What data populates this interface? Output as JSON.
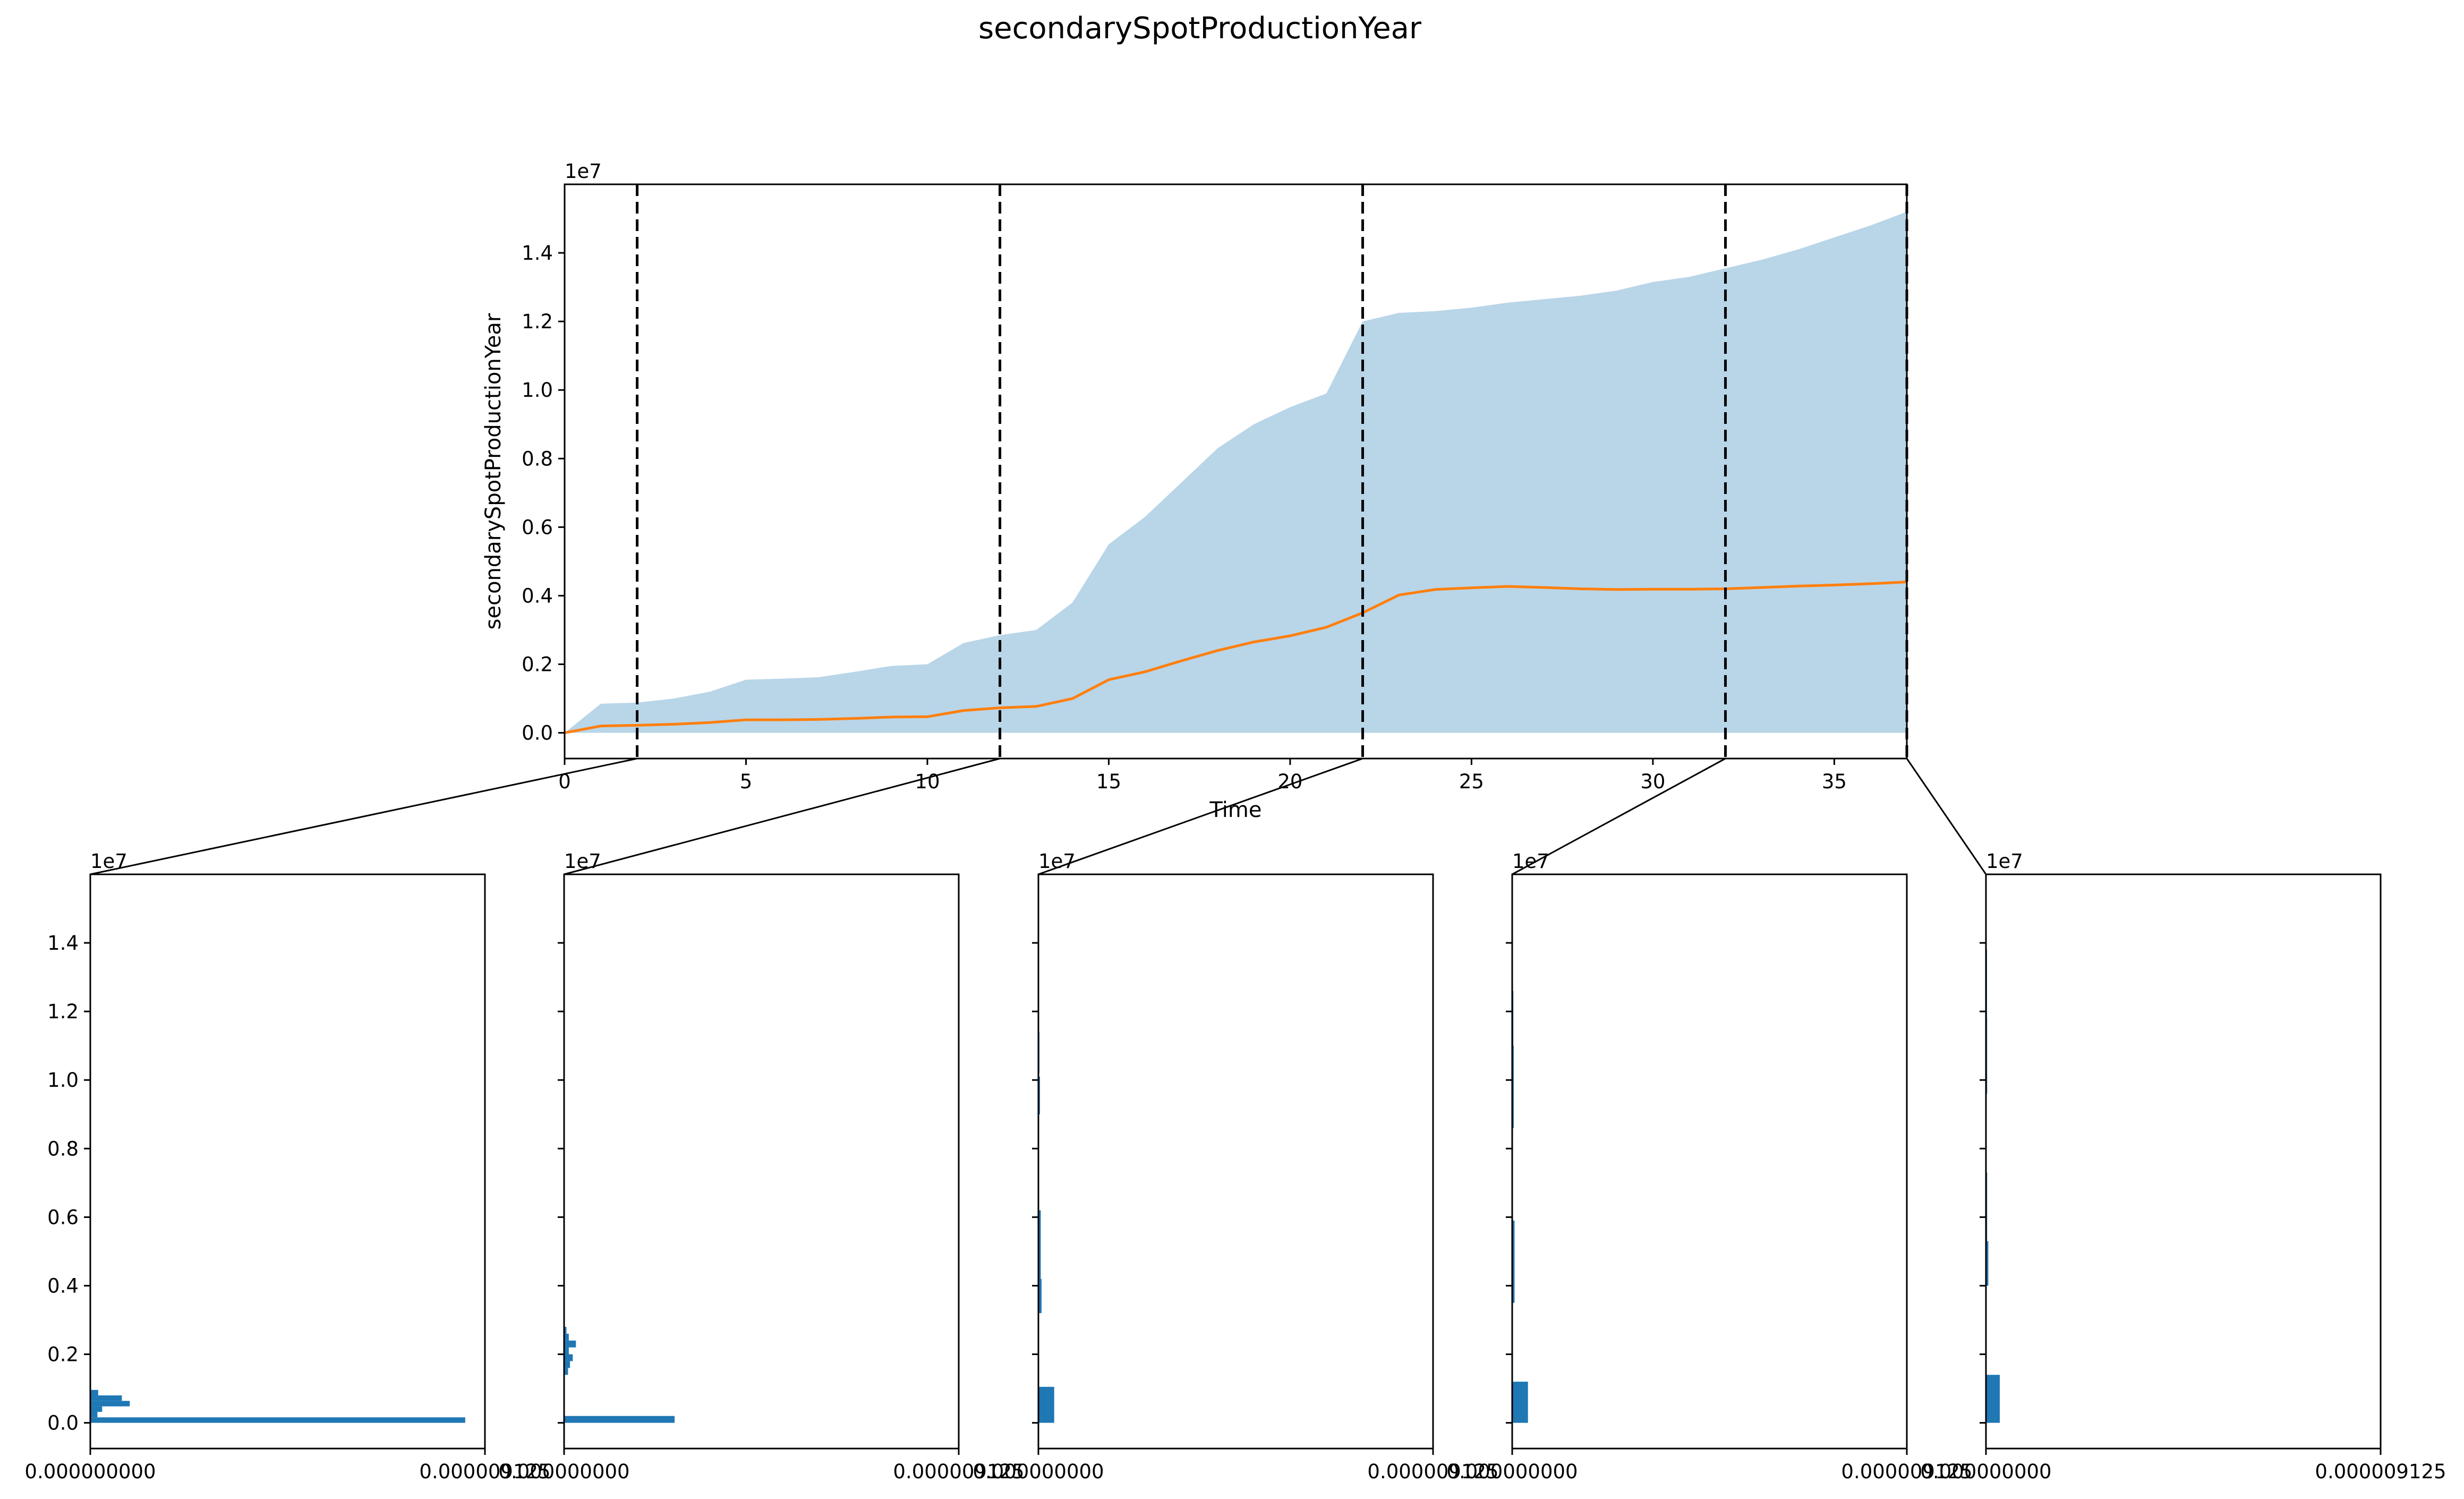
{
  "colors": {
    "band": "#b9d5e8",
    "line": "#ff7f0e",
    "hist": "#1f77b4",
    "axis": "#000000"
  },
  "chart_data": [
    {
      "type": "area",
      "title": "secondarySpotProductionYear",
      "xlabel": "Time",
      "ylabel": "secondarySpotProductionYear",
      "offset_text": "1e7",
      "xlim": [
        0,
        37
      ],
      "ylim": [
        -0.075,
        1.6
      ],
      "x_ticks": [
        "0",
        "5",
        "10",
        "15",
        "20",
        "25",
        "30",
        "35"
      ],
      "y_ticks": [
        "0.0",
        "0.2",
        "0.4",
        "0.6",
        "0.8",
        "1.0",
        "1.2",
        "1.4"
      ],
      "x": [
        0,
        1,
        2,
        3,
        4,
        5,
        6,
        7,
        8,
        9,
        10,
        11,
        12,
        13,
        14,
        15,
        16,
        17,
        18,
        19,
        20,
        21,
        22,
        23,
        24,
        25,
        26,
        27,
        28,
        29,
        30,
        31,
        32,
        33,
        34,
        35,
        36,
        37
      ],
      "band_upper": [
        0.0,
        0.085,
        0.088,
        0.1,
        0.12,
        0.155,
        0.158,
        0.162,
        0.178,
        0.195,
        0.2,
        0.262,
        0.285,
        0.3,
        0.38,
        0.55,
        0.63,
        0.73,
        0.83,
        0.9,
        0.95,
        0.99,
        1.2,
        1.225,
        1.23,
        1.24,
        1.255,
        1.265,
        1.275,
        1.29,
        1.315,
        1.33,
        1.355,
        1.38,
        1.41,
        1.445,
        1.48,
        1.52
      ],
      "band_lower": [
        0,
        0,
        0,
        0,
        0,
        0,
        0,
        0,
        0,
        0,
        0,
        0,
        0,
        0,
        0,
        0,
        0,
        0,
        0,
        0,
        0,
        0,
        0,
        0,
        0,
        0,
        0,
        0,
        0,
        0,
        0,
        0,
        0,
        0,
        0,
        0,
        0,
        0
      ],
      "mean": [
        0.0,
        0.02,
        0.022,
        0.025,
        0.03,
        0.038,
        0.038,
        0.039,
        0.042,
        0.046,
        0.047,
        0.065,
        0.073,
        0.077,
        0.1,
        0.155,
        0.178,
        0.21,
        0.24,
        0.265,
        0.283,
        0.308,
        0.35,
        0.402,
        0.418,
        0.423,
        0.427,
        0.424,
        0.42,
        0.418,
        0.419,
        0.419,
        0.42,
        0.424,
        0.428,
        0.431,
        0.435,
        0.44
      ],
      "vlines": [
        2,
        12,
        22,
        32,
        37
      ]
    },
    {
      "type": "bar",
      "orientation": "horizontal",
      "offset_text": "1e7",
      "ylim": [
        -0.075,
        1.6
      ],
      "y_ticks": [
        "0.0",
        "0.2",
        "0.4",
        "0.6",
        "0.8",
        "1.0",
        "1.2",
        "1.4"
      ],
      "xtick_labels": [
        "0.000000000",
        "0.000009125"
      ],
      "panels": [
        {
          "time": 2,
          "bars": [
            {
              "y": 0.0,
              "h": 0.016,
              "w": 0.95
            },
            {
              "y": 0.016,
              "h": 0.016,
              "w": 0.018
            },
            {
              "y": 0.032,
              "h": 0.016,
              "w": 0.03
            },
            {
              "y": 0.048,
              "h": 0.016,
              "w": 0.1
            },
            {
              "y": 0.064,
              "h": 0.016,
              "w": 0.08
            },
            {
              "y": 0.08,
              "h": 0.016,
              "w": 0.02
            }
          ]
        },
        {
          "time": 12,
          "bars": [
            {
              "y": 0.0,
              "h": 0.02,
              "w": 0.28
            },
            {
              "y": 0.14,
              "h": 0.02,
              "w": 0.01
            },
            {
              "y": 0.16,
              "h": 0.02,
              "w": 0.015
            },
            {
              "y": 0.18,
              "h": 0.02,
              "w": 0.022
            },
            {
              "y": 0.2,
              "h": 0.02,
              "w": 0.012
            },
            {
              "y": 0.22,
              "h": 0.02,
              "w": 0.03
            },
            {
              "y": 0.24,
              "h": 0.02,
              "w": 0.012
            },
            {
              "y": 0.26,
              "h": 0.02,
              "w": 0.006
            }
          ]
        },
        {
          "time": 22,
          "bars": [
            {
              "y": 0.0,
              "h": 0.105,
              "w": 0.04
            },
            {
              "y": 0.32,
              "h": 0.1,
              "w": 0.008
            },
            {
              "y": 0.42,
              "h": 0.2,
              "w": 0.006
            },
            {
              "y": 0.9,
              "h": 0.11,
              "w": 0.004
            },
            {
              "y": 1.02,
              "h": 0.12,
              "w": 0.002
            }
          ]
        },
        {
          "time": 32,
          "bars": [
            {
              "y": 0.0,
              "h": 0.12,
              "w": 0.04
            },
            {
              "y": 0.35,
              "h": 0.24,
              "w": 0.006
            },
            {
              "y": 0.86,
              "h": 0.24,
              "w": 0.004
            },
            {
              "y": 1.1,
              "h": 0.16,
              "w": 0.003
            }
          ]
        },
        {
          "time": 37,
          "bars": [
            {
              "y": 0.0,
              "h": 0.14,
              "w": 0.035
            },
            {
              "y": 0.4,
              "h": 0.13,
              "w": 0.006
            },
            {
              "y": 0.53,
              "h": 0.2,
              "w": 0.003
            },
            {
              "y": 0.96,
              "h": 0.22,
              "w": 0.003
            },
            {
              "y": 1.18,
              "h": 0.2,
              "w": 0.002
            }
          ]
        }
      ]
    }
  ]
}
